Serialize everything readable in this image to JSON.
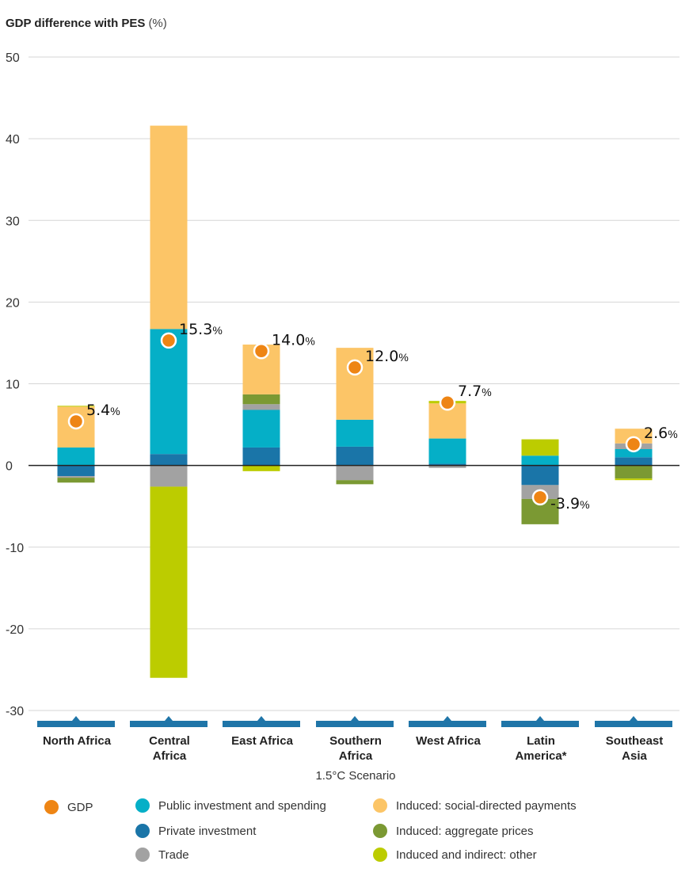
{
  "chart_data": {
    "type": "bar",
    "stacked": true,
    "ylabel_bold": "GDP difference with PES",
    "ylabel_unit": "(%)",
    "xlabel": "1.5°C Scenario",
    "ylim": [
      -30,
      50
    ],
    "yticks": [
      50,
      40,
      30,
      20,
      10,
      0,
      -10,
      -20,
      -30
    ],
    "ytick_labels": [
      "50",
      "40",
      "30",
      "20",
      "10",
      "0",
      "-10",
      "-20",
      "-30"
    ],
    "grid": true,
    "categories": [
      [
        "North Africa"
      ],
      [
        "Central",
        "Africa"
      ],
      [
        "East Africa"
      ],
      [
        "Southern",
        "Africa"
      ],
      [
        "West Africa"
      ],
      [
        "Latin",
        "America*"
      ],
      [
        "Southeast",
        "Asia"
      ]
    ],
    "series": [
      {
        "name": "Private investment",
        "color": "#1a75a8",
        "values": [
          -1.3,
          1.4,
          2.2,
          2.3,
          0.2,
          -2.4,
          1.0
        ]
      },
      {
        "name": "Public investment and spending",
        "color": "#05afc7",
        "values": [
          2.2,
          15.3,
          4.6,
          3.3,
          3.1,
          1.2,
          1.0
        ]
      },
      {
        "name": "Trade",
        "color": "#a2a2a2",
        "values": [
          -0.2,
          -2.6,
          0.7,
          -1.8,
          -0.3,
          -1.7,
          0.7
        ]
      },
      {
        "name": "Induced: aggregate prices",
        "color": "#7b9933",
        "values": [
          -0.6,
          0.0,
          1.2,
          -0.5,
          0.0,
          -3.1,
          -1.6
        ]
      },
      {
        "name": "Induced: social-directed payments",
        "color": "#fcc567",
        "values": [
          5.0,
          24.9,
          6.1,
          8.8,
          4.3,
          0.0,
          1.8
        ]
      },
      {
        "name": "Induced and indirect: other",
        "color": "#bccc00",
        "values": [
          0.1,
          -23.4,
          -0.7,
          0.0,
          0.3,
          2.0,
          -0.2
        ]
      }
    ],
    "gdp": {
      "name": "GDP",
      "color": "#ee8514",
      "values": [
        5.4,
        15.3,
        14.0,
        12.0,
        7.7,
        -3.9,
        2.6
      ],
      "labels": [
        "5.4",
        "15.3",
        "14.0",
        "12.0",
        "7.7",
        "-3.9",
        "2.6"
      ],
      "unit": "%"
    },
    "legend": [
      {
        "name": "GDP",
        "color": "#ee8514"
      },
      {
        "name": "Public investment and spending",
        "color": "#05afc7"
      },
      {
        "name": "Induced: social-directed payments",
        "color": "#fcc567"
      },
      {
        "name": "Private investment",
        "color": "#1a75a8"
      },
      {
        "name": "Induced: aggregate prices",
        "color": "#7b9933"
      },
      {
        "name": "Trade",
        "color": "#a2a2a2"
      },
      {
        "name": "Induced and indirect: other",
        "color": "#bccc00"
      }
    ]
  }
}
